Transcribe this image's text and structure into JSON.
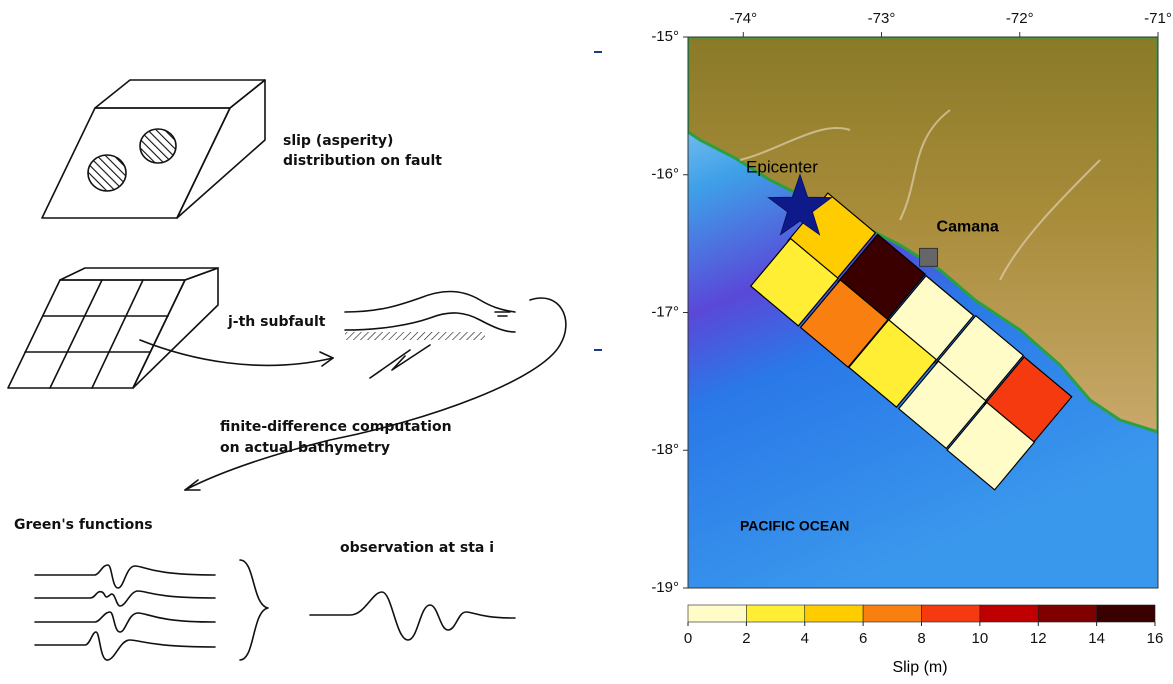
{
  "diagram": {
    "slip_label": [
      "slip  (asperity)",
      "distribution on fault"
    ],
    "subfault_label": "j-th subfault",
    "fd_label": [
      "finite-difference computation",
      "on actual bathymetry"
    ],
    "greens_label": "Green's functions",
    "observation_label": "observation at sta i"
  },
  "map": {
    "xlim": [
      -74.4,
      -71
    ],
    "ylim": [
      -19,
      -15
    ],
    "xticks": [
      {
        "value": -74,
        "label": "-74°"
      },
      {
        "value": -73,
        "label": "-73°"
      },
      {
        "value": -72,
        "label": "-72°"
      },
      {
        "value": -71,
        "label": "-71°"
      }
    ],
    "yticks": [
      {
        "value": -15,
        "label": "-15°"
      },
      {
        "value": -16,
        "label": "-16°"
      },
      {
        "value": -17,
        "label": "-17°"
      },
      {
        "value": -18,
        "label": "-18°"
      },
      {
        "value": -19,
        "label": "-19°"
      }
    ],
    "epicenter": {
      "label": "Epicenter",
      "lon": -73.59,
      "lat": -16.24
    },
    "town": {
      "label": "Camana",
      "lon": -72.66,
      "lat": -16.6
    },
    "ocean_label": "PACIFIC OCEAN",
    "subfaults": [
      {
        "lon": -73.36,
        "lat": -16.45,
        "slip": 5
      },
      {
        "lon": -73.0,
        "lat": -16.75,
        "slip": 15
      },
      {
        "lon": -72.65,
        "lat": -17.05,
        "slip": 1
      },
      {
        "lon": -72.29,
        "lat": -17.34,
        "slip": 1
      },
      {
        "lon": -71.94,
        "lat": -17.64,
        "slip": 9
      },
      {
        "lon": -73.63,
        "lat": -16.78,
        "slip": 3
      },
      {
        "lon": -73.27,
        "lat": -17.08,
        "slip": 7
      },
      {
        "lon": -72.92,
        "lat": -17.37,
        "slip": 3
      },
      {
        "lon": -72.56,
        "lat": -17.67,
        "slip": 1
      },
      {
        "lon": -72.21,
        "lat": -17.97,
        "slip": 1
      }
    ],
    "colorbar": {
      "label": "Slip (m)",
      "ticks": [
        0,
        2,
        4,
        6,
        8,
        10,
        12,
        14,
        16
      ],
      "colors": [
        "#fffcc8",
        "#ffee33",
        "#ffcc00",
        "#f98010",
        "#f53a10",
        "#c00000",
        "#800000",
        "#3a0000"
      ]
    }
  }
}
